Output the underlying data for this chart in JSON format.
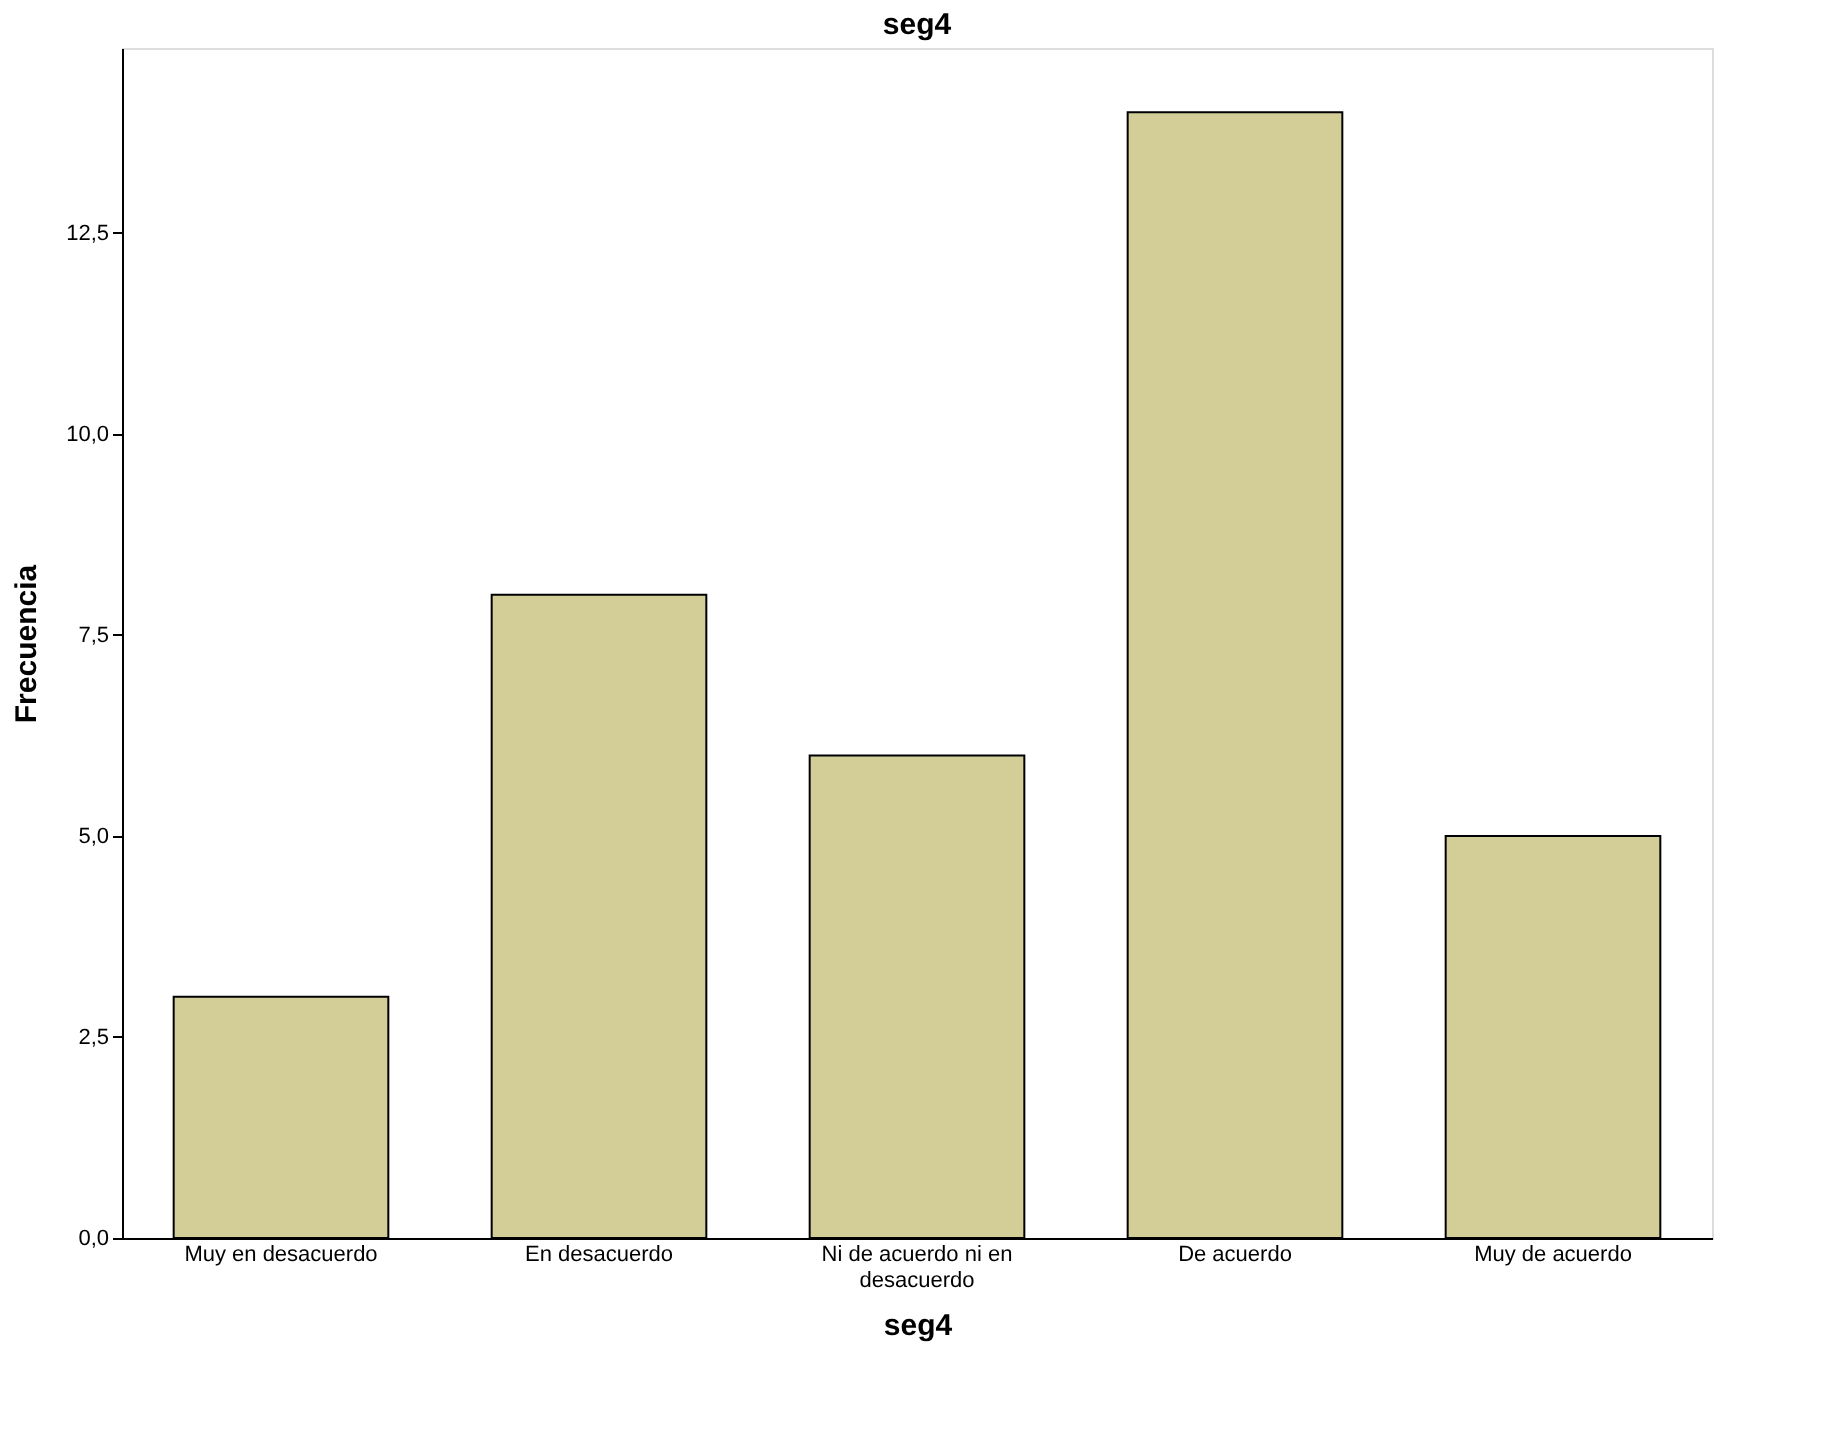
{
  "chart_data": {
    "type": "bar",
    "title": "seg4",
    "xlabel": "seg4",
    "ylabel": "Frecuencia",
    "categories": [
      "Muy en desacuerdo",
      "En desacuerdo",
      "Ni de acuerdo ni en desacuerdo",
      "De acuerdo",
      "Muy de acuerdo"
    ],
    "values": [
      3,
      8,
      6,
      14,
      5
    ],
    "color": "#d3ce97",
    "ylim": [
      0,
      14.8
    ],
    "yticks": [
      {
        "value": 0,
        "label": "0,0"
      },
      {
        "value": 2.5,
        "label": "2,5"
      },
      {
        "value": 5,
        "label": "5,0"
      },
      {
        "value": 7.5,
        "label": "7,5"
      },
      {
        "value": 10,
        "label": "10,0"
      },
      {
        "value": 12.5,
        "label": "12,5"
      }
    ],
    "grid": false
  }
}
